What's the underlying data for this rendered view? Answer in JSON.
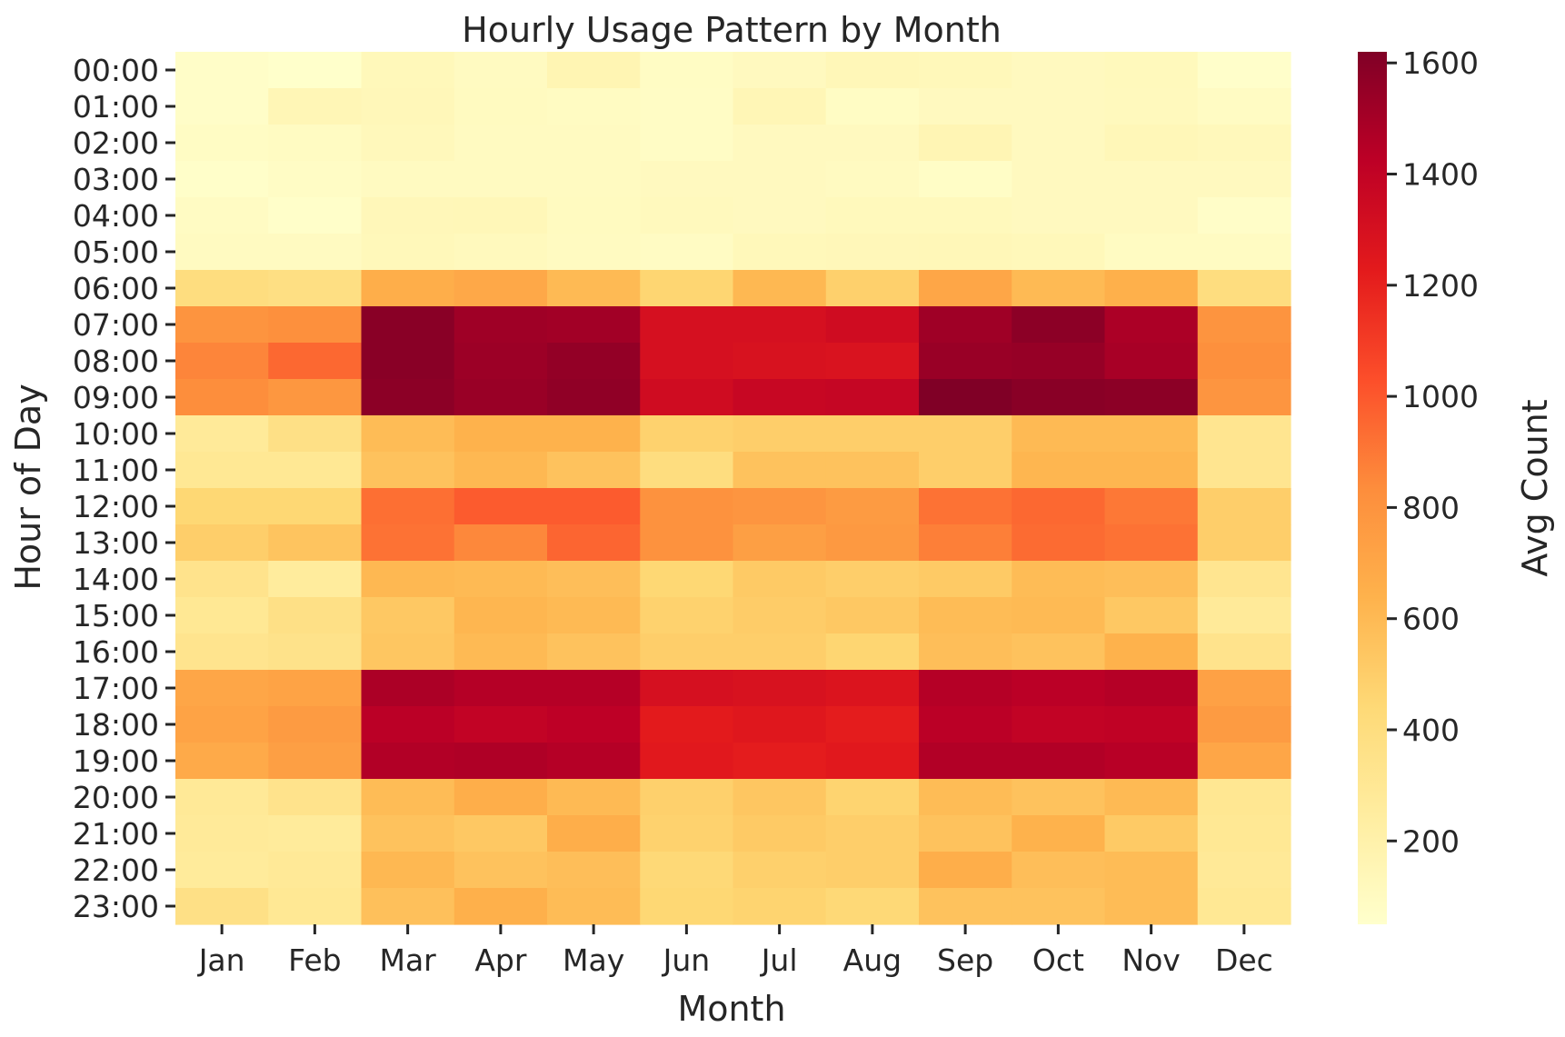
{
  "chart_data": {
    "type": "heatmap",
    "title": "Hourly Usage Pattern by Month",
    "xlabel": "Month",
    "ylabel": "Hour of Day",
    "colorbar_label": "Avg Count",
    "colormap": "YlOrRd",
    "vmin": 50,
    "vmax": 1620,
    "colorbar_ticks": [
      200,
      400,
      600,
      800,
      1000,
      1200,
      1400,
      1600
    ],
    "x_categories": [
      "Jan",
      "Feb",
      "Mar",
      "Apr",
      "May",
      "Jun",
      "Jul",
      "Aug",
      "Sep",
      "Oct",
      "Nov",
      "Dec"
    ],
    "y_categories": [
      "00:00",
      "01:00",
      "02:00",
      "03:00",
      "04:00",
      "05:00",
      "06:00",
      "07:00",
      "08:00",
      "09:00",
      "10:00",
      "11:00",
      "12:00",
      "13:00",
      "14:00",
      "15:00",
      "16:00",
      "17:00",
      "18:00",
      "19:00",
      "20:00",
      "21:00",
      "22:00",
      "23:00"
    ],
    "values": [
      [
        70,
        55,
        130,
        100,
        160,
        85,
        110,
        140,
        130,
        110,
        120,
        60
      ],
      [
        70,
        150,
        135,
        105,
        95,
        80,
        150,
        85,
        110,
        110,
        115,
        90
      ],
      [
        85,
        95,
        125,
        100,
        100,
        80,
        110,
        110,
        155,
        110,
        140,
        125
      ],
      [
        65,
        80,
        100,
        100,
        100,
        110,
        110,
        100,
        75,
        110,
        110,
        110
      ],
      [
        90,
        65,
        135,
        140,
        105,
        115,
        110,
        120,
        120,
        110,
        110,
        70
      ],
      [
        100,
        100,
        130,
        115,
        100,
        90,
        130,
        135,
        140,
        130,
        95,
        95
      ],
      [
        400,
        380,
        660,
        690,
        600,
        460,
        610,
        490,
        700,
        600,
        650,
        400
      ],
      [
        800,
        820,
        1590,
        1520,
        1510,
        1300,
        1300,
        1330,
        1520,
        1580,
        1480,
        800
      ],
      [
        860,
        950,
        1590,
        1530,
        1560,
        1300,
        1290,
        1280,
        1540,
        1550,
        1490,
        820
      ],
      [
        830,
        780,
        1580,
        1540,
        1570,
        1330,
        1370,
        1380,
        1620,
        1590,
        1580,
        790
      ],
      [
        280,
        370,
        590,
        640,
        640,
        480,
        500,
        500,
        500,
        600,
        600,
        320
      ],
      [
        300,
        300,
        560,
        610,
        560,
        400,
        560,
        560,
        500,
        620,
        620,
        320
      ],
      [
        450,
        450,
        930,
        990,
        990,
        810,
        790,
        760,
        920,
        950,
        900,
        500
      ],
      [
        500,
        550,
        920,
        850,
        960,
        810,
        740,
        770,
        880,
        940,
        920,
        500
      ],
      [
        340,
        260,
        610,
        600,
        580,
        450,
        520,
        500,
        520,
        590,
        580,
        320
      ],
      [
        300,
        370,
        530,
        620,
        600,
        480,
        510,
        530,
        590,
        600,
        530,
        280
      ],
      [
        330,
        350,
        540,
        600,
        560,
        500,
        500,
        460,
        580,
        560,
        640,
        340
      ],
      [
        700,
        720,
        1480,
        1450,
        1450,
        1300,
        1290,
        1270,
        1450,
        1430,
        1450,
        730
      ],
      [
        720,
        760,
        1430,
        1400,
        1420,
        1230,
        1250,
        1220,
        1430,
        1400,
        1410,
        760
      ],
      [
        680,
        740,
        1460,
        1470,
        1450,
        1240,
        1220,
        1240,
        1460,
        1460,
        1440,
        700
      ],
      [
        290,
        340,
        590,
        660,
        600,
        490,
        540,
        470,
        590,
        560,
        600,
        310
      ],
      [
        280,
        270,
        560,
        530,
        660,
        480,
        520,
        500,
        560,
        640,
        520,
        300
      ],
      [
        270,
        290,
        610,
        560,
        580,
        440,
        490,
        500,
        660,
        580,
        590,
        290
      ],
      [
        370,
        300,
        570,
        650,
        590,
        450,
        470,
        440,
        560,
        560,
        590,
        300
      ]
    ]
  }
}
